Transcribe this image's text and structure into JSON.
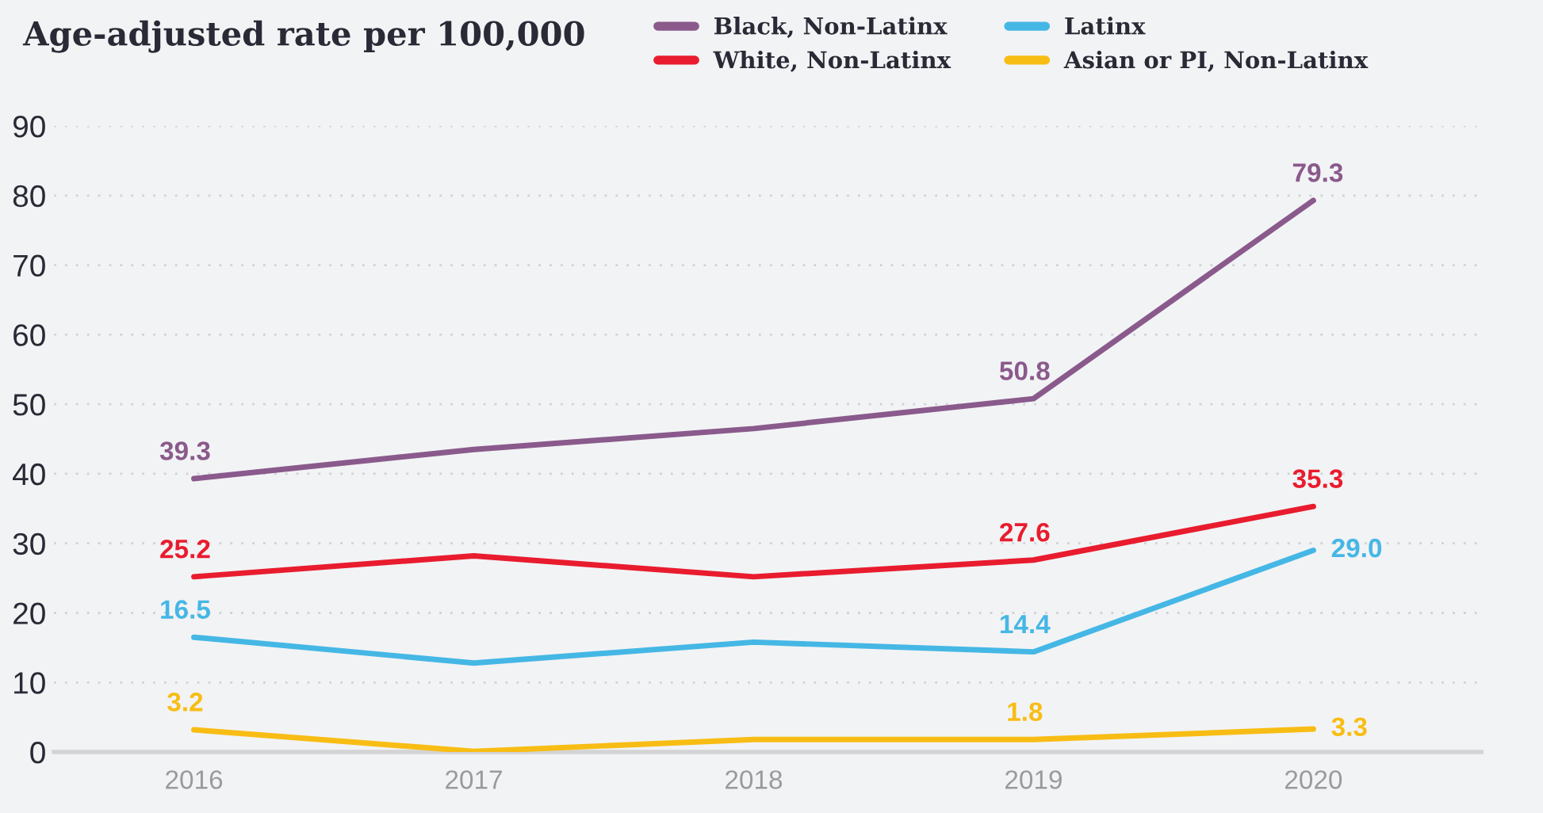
{
  "chart_data": {
    "type": "line",
    "subtitle": "Age-adjusted rate per 100,000",
    "categories": [
      "2016",
      "2017",
      "2018",
      "2019",
      "2020"
    ],
    "series": [
      {
        "name": "Black, Non-Latinx",
        "color": "#8a5a8c",
        "values": [
          39.3,
          43.5,
          46.5,
          50.8,
          79.3
        ],
        "value_labels": [
          "39.3",
          null,
          null,
          "50.8",
          "79.3"
        ]
      },
      {
        "name": "White, Non-Latinx",
        "color": "#e81c2e",
        "values": [
          25.2,
          28.2,
          25.2,
          27.6,
          35.3
        ],
        "value_labels": [
          "25.2",
          null,
          null,
          "27.6",
          "35.3"
        ]
      },
      {
        "name": "Latinx",
        "color": "#45b7e5",
        "values": [
          16.5,
          12.8,
          15.8,
          14.4,
          29.0
        ],
        "value_labels": [
          "16.5",
          null,
          null,
          "14.4",
          "29.0"
        ]
      },
      {
        "name": "Asian or PI, Non-Latinx",
        "color": "#f8bd14",
        "values": [
          3.2,
          0.1,
          1.8,
          1.8,
          3.3
        ],
        "value_labels": [
          "3.2",
          null,
          null,
          "1.8",
          "3.3"
        ]
      }
    ],
    "ylim": [
      0,
      90
    ],
    "yticks": [
      0,
      10,
      20,
      30,
      40,
      50,
      60,
      70,
      80,
      90
    ],
    "grid": "y",
    "legend": "top right",
    "marker": "none",
    "line_style": "solid"
  }
}
